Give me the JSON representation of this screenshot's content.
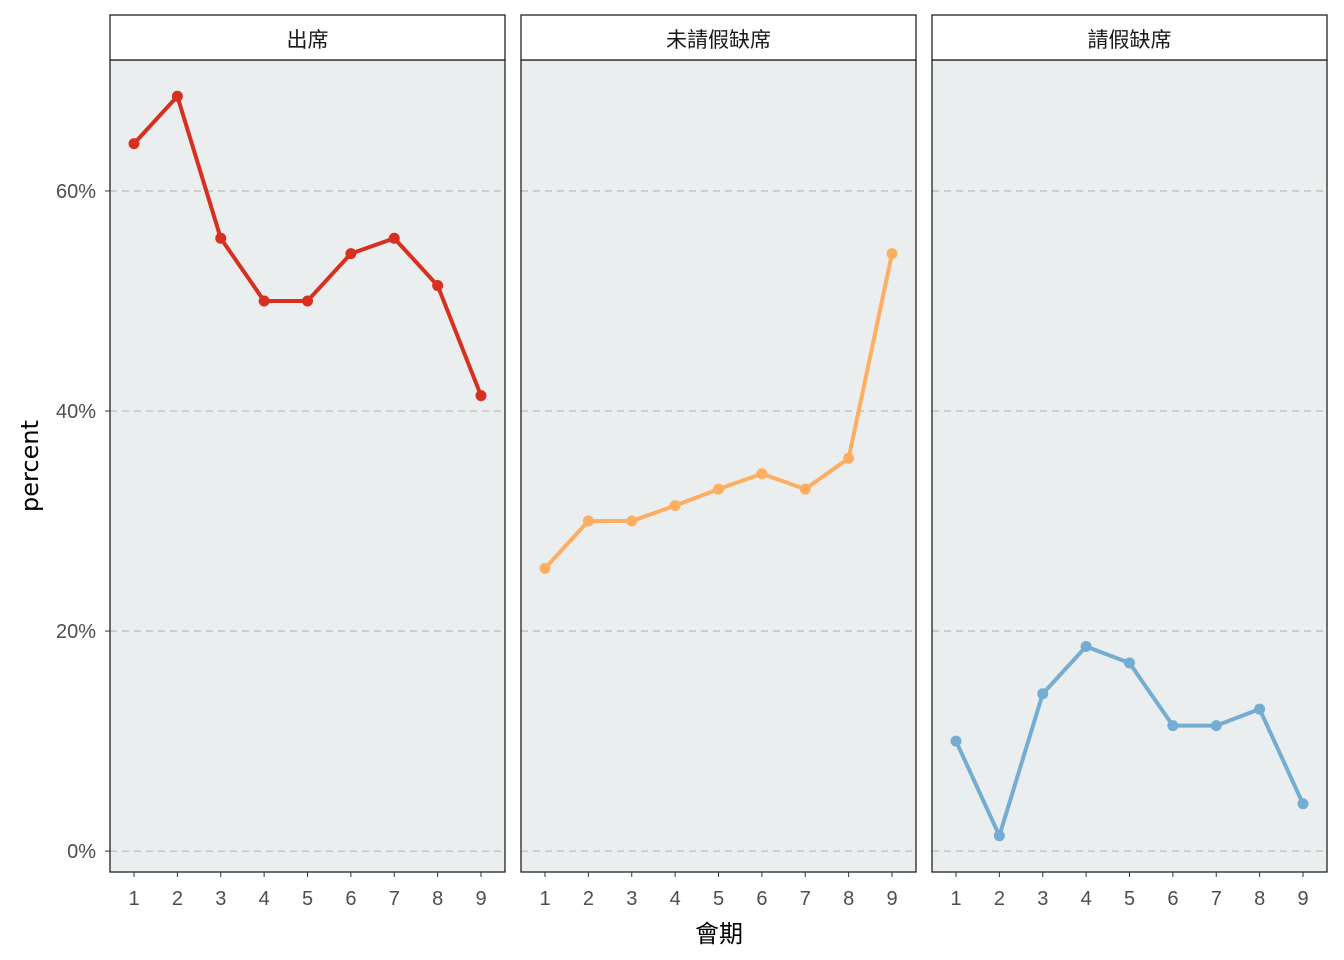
{
  "chart_data": {
    "type": "line",
    "facets": [
      "出席",
      "未請假缺席",
      "請假缺席"
    ],
    "x": [
      1,
      2,
      3,
      4,
      5,
      6,
      7,
      8,
      9
    ],
    "series": [
      {
        "facet": "出席",
        "color": "#d7301f",
        "values": [
          64.3,
          68.6,
          55.7,
          50.0,
          50.0,
          54.3,
          55.7,
          51.4,
          41.4
        ]
      },
      {
        "facet": "未請假缺席",
        "color": "#fdae61",
        "values": [
          25.7,
          30.0,
          30.0,
          31.4,
          32.9,
          34.3,
          32.9,
          35.7,
          54.3
        ]
      },
      {
        "facet": "請假缺席",
        "color": "#74add1",
        "values": [
          10.0,
          1.4,
          14.3,
          18.6,
          17.1,
          11.4,
          11.4,
          12.9,
          4.3
        ]
      }
    ],
    "xlabel": "會期",
    "ylabel": "percent",
    "ylim": [
      -1.9,
      71.9
    ],
    "yticks": [
      0,
      20,
      40,
      60
    ],
    "ytick_labels": [
      "0%",
      "20%",
      "40%",
      "60%"
    ],
    "grid": "horizontal-dashed",
    "legend": "none"
  }
}
